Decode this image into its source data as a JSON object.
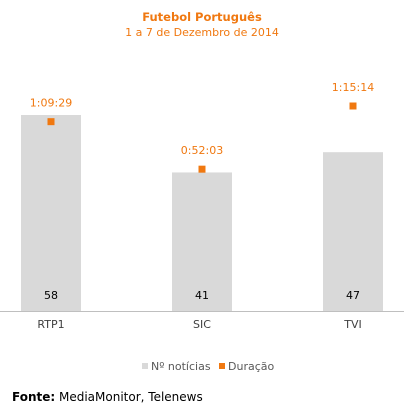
{
  "colors": {
    "accent": "#f07810",
    "bar": "#d9d9d9",
    "text": "#000000",
    "axis": "#bfbfbf",
    "tick": "#404040",
    "legend": "#595959"
  },
  "chart_data": {
    "type": "bar",
    "title": "Futebol Português",
    "subtitle": "1 a 7 de Dezembro de 2014",
    "categories": [
      "RTP1",
      "SIC",
      "TVI"
    ],
    "series": [
      {
        "name": "Nº notícias",
        "kind": "bar",
        "color": "#d9d9d9",
        "values": [
          58,
          41,
          47
        ],
        "labels": [
          "58",
          "41",
          "47"
        ]
      },
      {
        "name": "Duração",
        "kind": "marker",
        "color": "#f07810",
        "values_seconds": [
          4169,
          3123,
          4514
        ],
        "labels": [
          "1:09:29",
          "0:52:03",
          "1:15:14"
        ]
      }
    ],
    "legend_position": "bottom",
    "grid": false
  },
  "source": {
    "label": "Fonte:",
    "text": " MediaMonitor, Telenews"
  }
}
